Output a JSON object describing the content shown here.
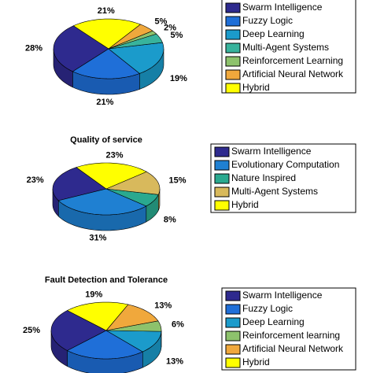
{
  "chart_data": [
    {
      "type": "pie",
      "categories": [
        "Swarm Intelligence",
        "Fuzzy Logic",
        "Deep Learning",
        "Multi-Agent Systems",
        "Reinforcement Learning",
        "Artificial Neural Network",
        "Hybrid"
      ],
      "values": [
        28,
        21,
        19,
        5,
        2,
        5,
        21
      ],
      "value_labels": [
        "28%",
        "21%",
        "19%",
        "5%",
        "2%",
        "5%",
        "21%"
      ],
      "colors": [
        "#2e2a8e",
        "#1f6fd8",
        "#1b9bcb",
        "#38b39c",
        "#8dc26c",
        "#f0a83c",
        "#ffff00"
      ]
    },
    {
      "type": "pie",
      "title": "Quality of service",
      "categories": [
        "Swarm Intelligence",
        "Evolutionary Computation",
        "Nature Inspired",
        "Multi-Agent Systems",
        "Hybrid"
      ],
      "values": [
        23,
        31,
        8,
        15,
        23
      ],
      "value_labels": [
        "23%",
        "31%",
        "8%",
        "15%",
        "23%"
      ],
      "colors": [
        "#2e2a8e",
        "#1f80d2",
        "#2aa98f",
        "#d8b95c",
        "#ffff00"
      ]
    },
    {
      "type": "pie",
      "title": "Fault Detection and Tolerance",
      "categories": [
        "Swarm Intelligence",
        "Fuzzy Logic",
        "Deep Learning",
        "Reinforcement learning",
        "Artificial Neural Network",
        "Hybrid"
      ],
      "values": [
        25,
        24,
        13,
        6,
        13,
        19
      ],
      "value_labels": [
        "25%",
        null,
        "13%",
        "6%",
        "13%",
        "19%"
      ],
      "colors": [
        "#2e2a8e",
        "#1f6fd8",
        "#1b9bcb",
        "#8dc26c",
        "#f0a83c",
        "#ffff00"
      ]
    }
  ]
}
